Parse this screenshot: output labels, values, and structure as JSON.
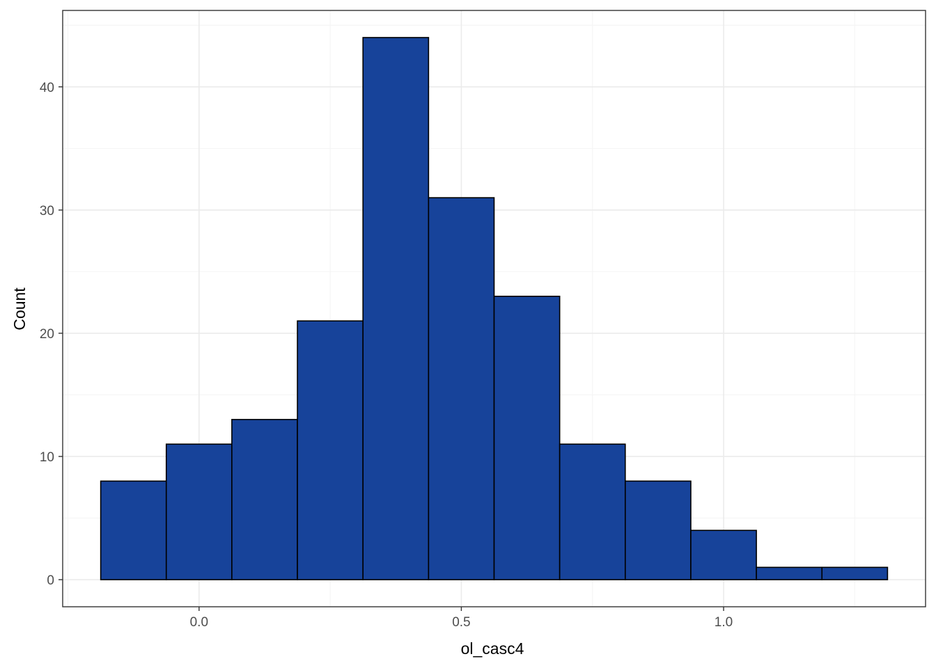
{
  "chart_data": {
    "type": "bar",
    "subtype": "histogram",
    "title": "",
    "xlabel": "ol_casc4",
    "ylabel": "Count",
    "bin_width": 0.125,
    "bins": [
      {
        "x0": -0.1875,
        "x1": -0.0625,
        "count": 8
      },
      {
        "x0": -0.0625,
        "x1": 0.0625,
        "count": 11
      },
      {
        "x0": 0.0625,
        "x1": 0.1875,
        "count": 13
      },
      {
        "x0": 0.1875,
        "x1": 0.3125,
        "count": 21
      },
      {
        "x0": 0.3125,
        "x1": 0.4375,
        "count": 44
      },
      {
        "x0": 0.4375,
        "x1": 0.5625,
        "count": 31
      },
      {
        "x0": 0.5625,
        "x1": 0.6875,
        "count": 23
      },
      {
        "x0": 0.6875,
        "x1": 0.8125,
        "count": 11
      },
      {
        "x0": 0.8125,
        "x1": 0.9375,
        "count": 8
      },
      {
        "x0": 0.9375,
        "x1": 1.0625,
        "count": 4
      },
      {
        "x0": 1.0625,
        "x1": 1.1875,
        "count": 1
      },
      {
        "x0": 1.1875,
        "x1": 1.3125,
        "count": 1
      }
    ],
    "xlim": [
      -0.26,
      1.385
    ],
    "ylim": [
      -2.2,
      46.2
    ],
    "x_ticks": [
      {
        "value": 0.0,
        "label": "0.0"
      },
      {
        "value": 0.5,
        "label": "0.5"
      },
      {
        "value": 1.0,
        "label": "1.0"
      }
    ],
    "x_minor_ticks": [
      -0.25,
      0.25,
      0.75,
      1.25
    ],
    "y_ticks": [
      {
        "value": 0,
        "label": "0"
      },
      {
        "value": 10,
        "label": "10"
      },
      {
        "value": 20,
        "label": "20"
      },
      {
        "value": 30,
        "label": "30"
      },
      {
        "value": 40,
        "label": "40"
      }
    ],
    "y_minor_ticks": [
      5,
      15,
      25,
      35,
      45
    ],
    "grid": true,
    "legend": "none",
    "colors": {
      "bar_fill": "#17439A",
      "bar_outline": "#000000",
      "panel_border": "#333333",
      "grid_major": "#EBEBEB",
      "grid_minor": "#F4F4F4",
      "background": "#FFFFFF"
    }
  }
}
